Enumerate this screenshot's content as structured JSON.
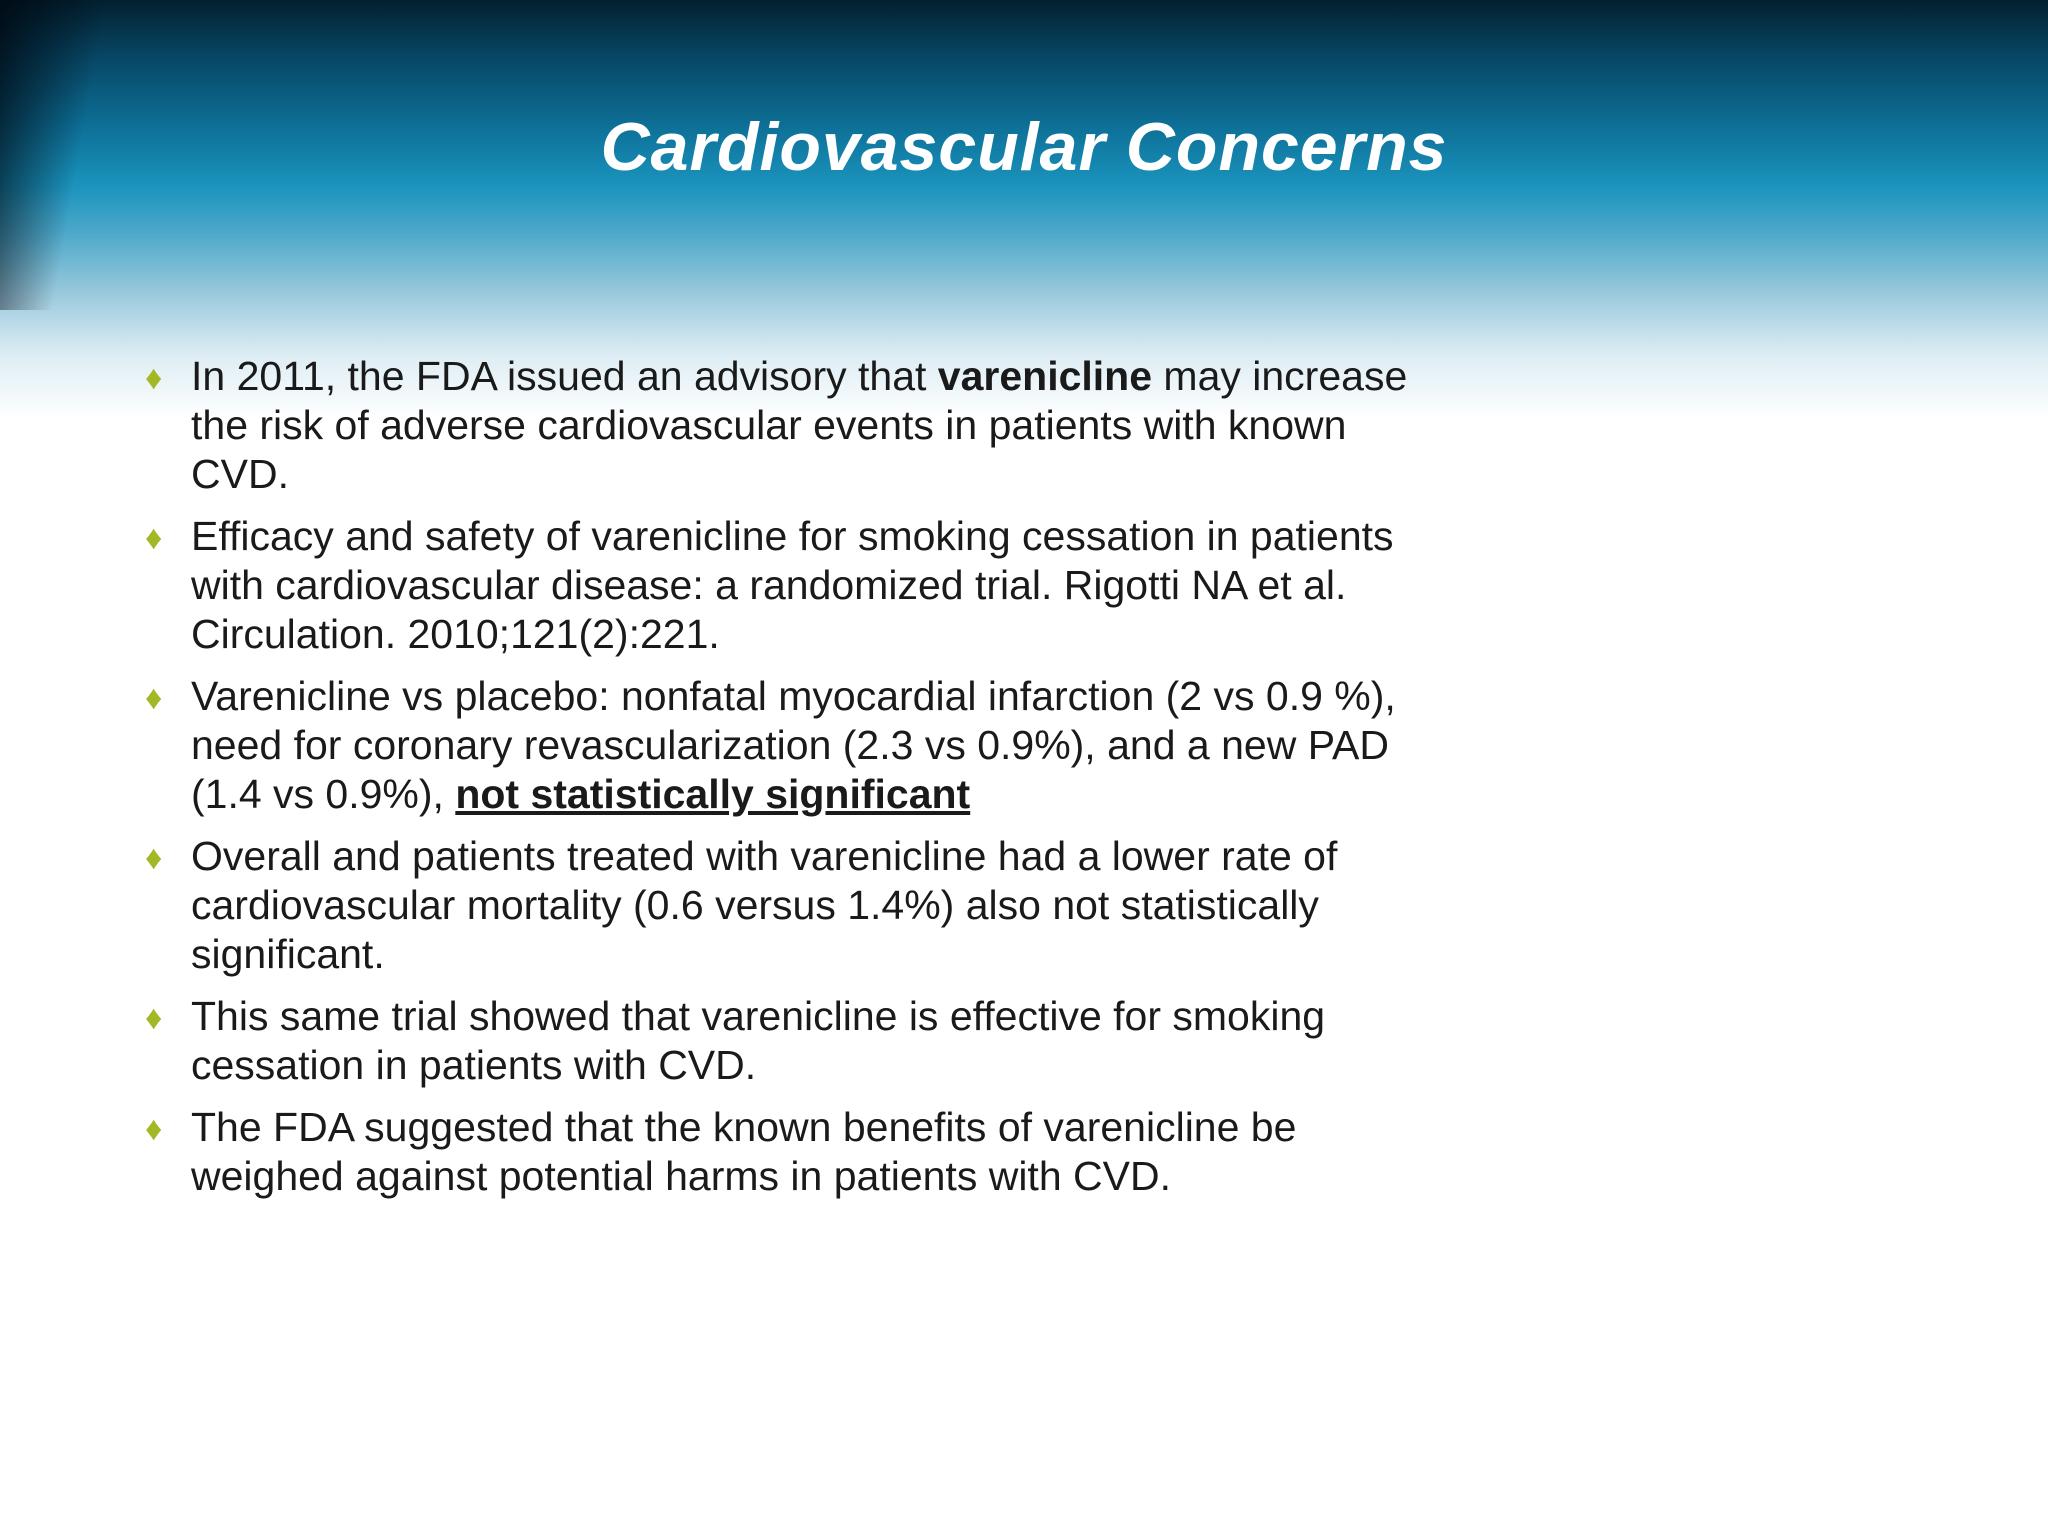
{
  "slide": {
    "title": "Cardiovascular Concerns",
    "accent_colors": {
      "bullet_diamond": "#a4b725",
      "header_top": "#03202f",
      "header_mid": "#1a93bd",
      "title_text": "#ffffff",
      "body_text": "#1a1a1a"
    },
    "bullet_icon": "diamond-icon",
    "bullets": [
      {
        "segments": [
          {
            "text": "In 2011, the FDA issued an advisory that ",
            "bold": false,
            "underline": false
          },
          {
            "text": "varenicline",
            "bold": true,
            "underline": false
          },
          {
            "text": " may increase the risk of adverse cardiovascular events in patients with known CVD.",
            "bold": false,
            "underline": false
          }
        ]
      },
      {
        "segments": [
          {
            "text": "Efficacy and safety of varenicline for smoking cessation in patients with cardiovascular disease: a randomized trial. Rigotti NA et al. Circulation. 2010;121(2):221.",
            "bold": false,
            "underline": false
          }
        ]
      },
      {
        "segments": [
          {
            "text": "Varenicline vs placebo: nonfatal myocardial infarction (2 vs 0.9 %), need for coronary revascularization (2.3 vs 0.9%), and a new PAD (1.4 vs 0.9%), ",
            "bold": false,
            "underline": false
          },
          {
            "text": "not statistically significant",
            "bold": true,
            "underline": true
          }
        ]
      },
      {
        "segments": [
          {
            "text": "Overall and patients treated with varenicline had a lower rate of cardiovascular mortality (0.6 versus 1.4%) also not statistically significant.",
            "bold": false,
            "underline": false
          }
        ]
      },
      {
        "segments": [
          {
            "text": "This same trial showed that varenicline is effective for smoking cessation in patients with CVD.",
            "bold": false,
            "underline": false
          }
        ]
      },
      {
        "segments": [
          {
            "text": "The FDA suggested that the known benefits of varenicline be weighed against potential harms in patients with CVD.",
            "bold": false,
            "underline": false
          }
        ]
      }
    ]
  }
}
